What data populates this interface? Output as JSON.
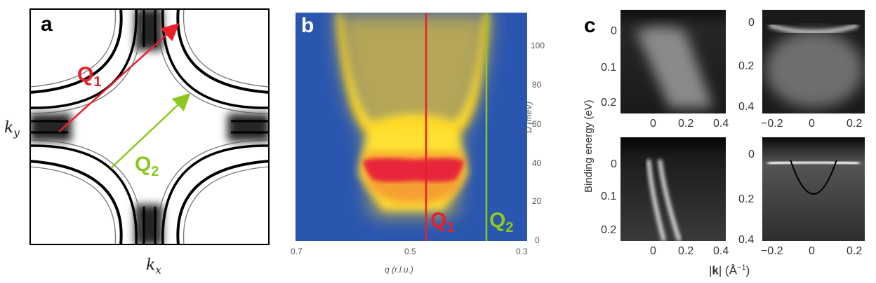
{
  "figure": {
    "panels": [
      "a",
      "b",
      "c"
    ]
  },
  "panel_a": {
    "letter": "a",
    "q1": {
      "main": "Q",
      "sub": "1",
      "color": "#e8202a"
    },
    "q2": {
      "main": "Q",
      "sub": "2",
      "color": "#8dc820"
    },
    "x_axis_label": "k",
    "x_axis_sub": "x",
    "y_axis_label": "k",
    "y_axis_sub": "y"
  },
  "panel_b": {
    "letter": "b",
    "q1": {
      "main": "Q",
      "sub": "1",
      "color": "#e8202a"
    },
    "q2": {
      "main": "Q",
      "sub": "2",
      "color": "#8dc820"
    },
    "x_axis_label": "q (r.l.u.)",
    "y_axis_label": "Ω (meV)",
    "x_ticks": [
      "0.7",
      "0.5",
      "0.3"
    ],
    "y_ticks": [
      "0",
      "20",
      "40",
      "60",
      "80",
      "100"
    ]
  },
  "panel_c": {
    "letter": "c",
    "y_axis_label": "Binding energy (eV)",
    "x_axis_label": "|k| (Å⁻¹)",
    "x_label_parts": {
      "bar_left": "|",
      "k": "k",
      "bar_right": "| (Å",
      "exp": "−1",
      "close": ")"
    },
    "top_left": {
      "x_ticks": [
        "0",
        "0.2",
        "0.4"
      ],
      "y_ticks": [
        "0",
        "0.1",
        "0.2"
      ]
    },
    "top_right": {
      "x_ticks": [
        "−0.2",
        "0",
        "0.2"
      ],
      "y_ticks": [
        "0",
        "0.2",
        "0.4"
      ]
    },
    "bottom_left": {
      "x_ticks": [
        "0",
        "0.2",
        "0.4"
      ],
      "y_ticks": [
        "0",
        "0.1",
        "0.2"
      ]
    },
    "bottom_right": {
      "x_ticks": [
        "−0.2",
        "0",
        "0.2"
      ],
      "y_ticks": [
        "0",
        "0.2",
        "0.4"
      ]
    }
  },
  "colors": {
    "heatmap_bg": "#2a56b0",
    "heatmap_hot": "#e8253a",
    "heatmap_warm": "#f5d020"
  }
}
